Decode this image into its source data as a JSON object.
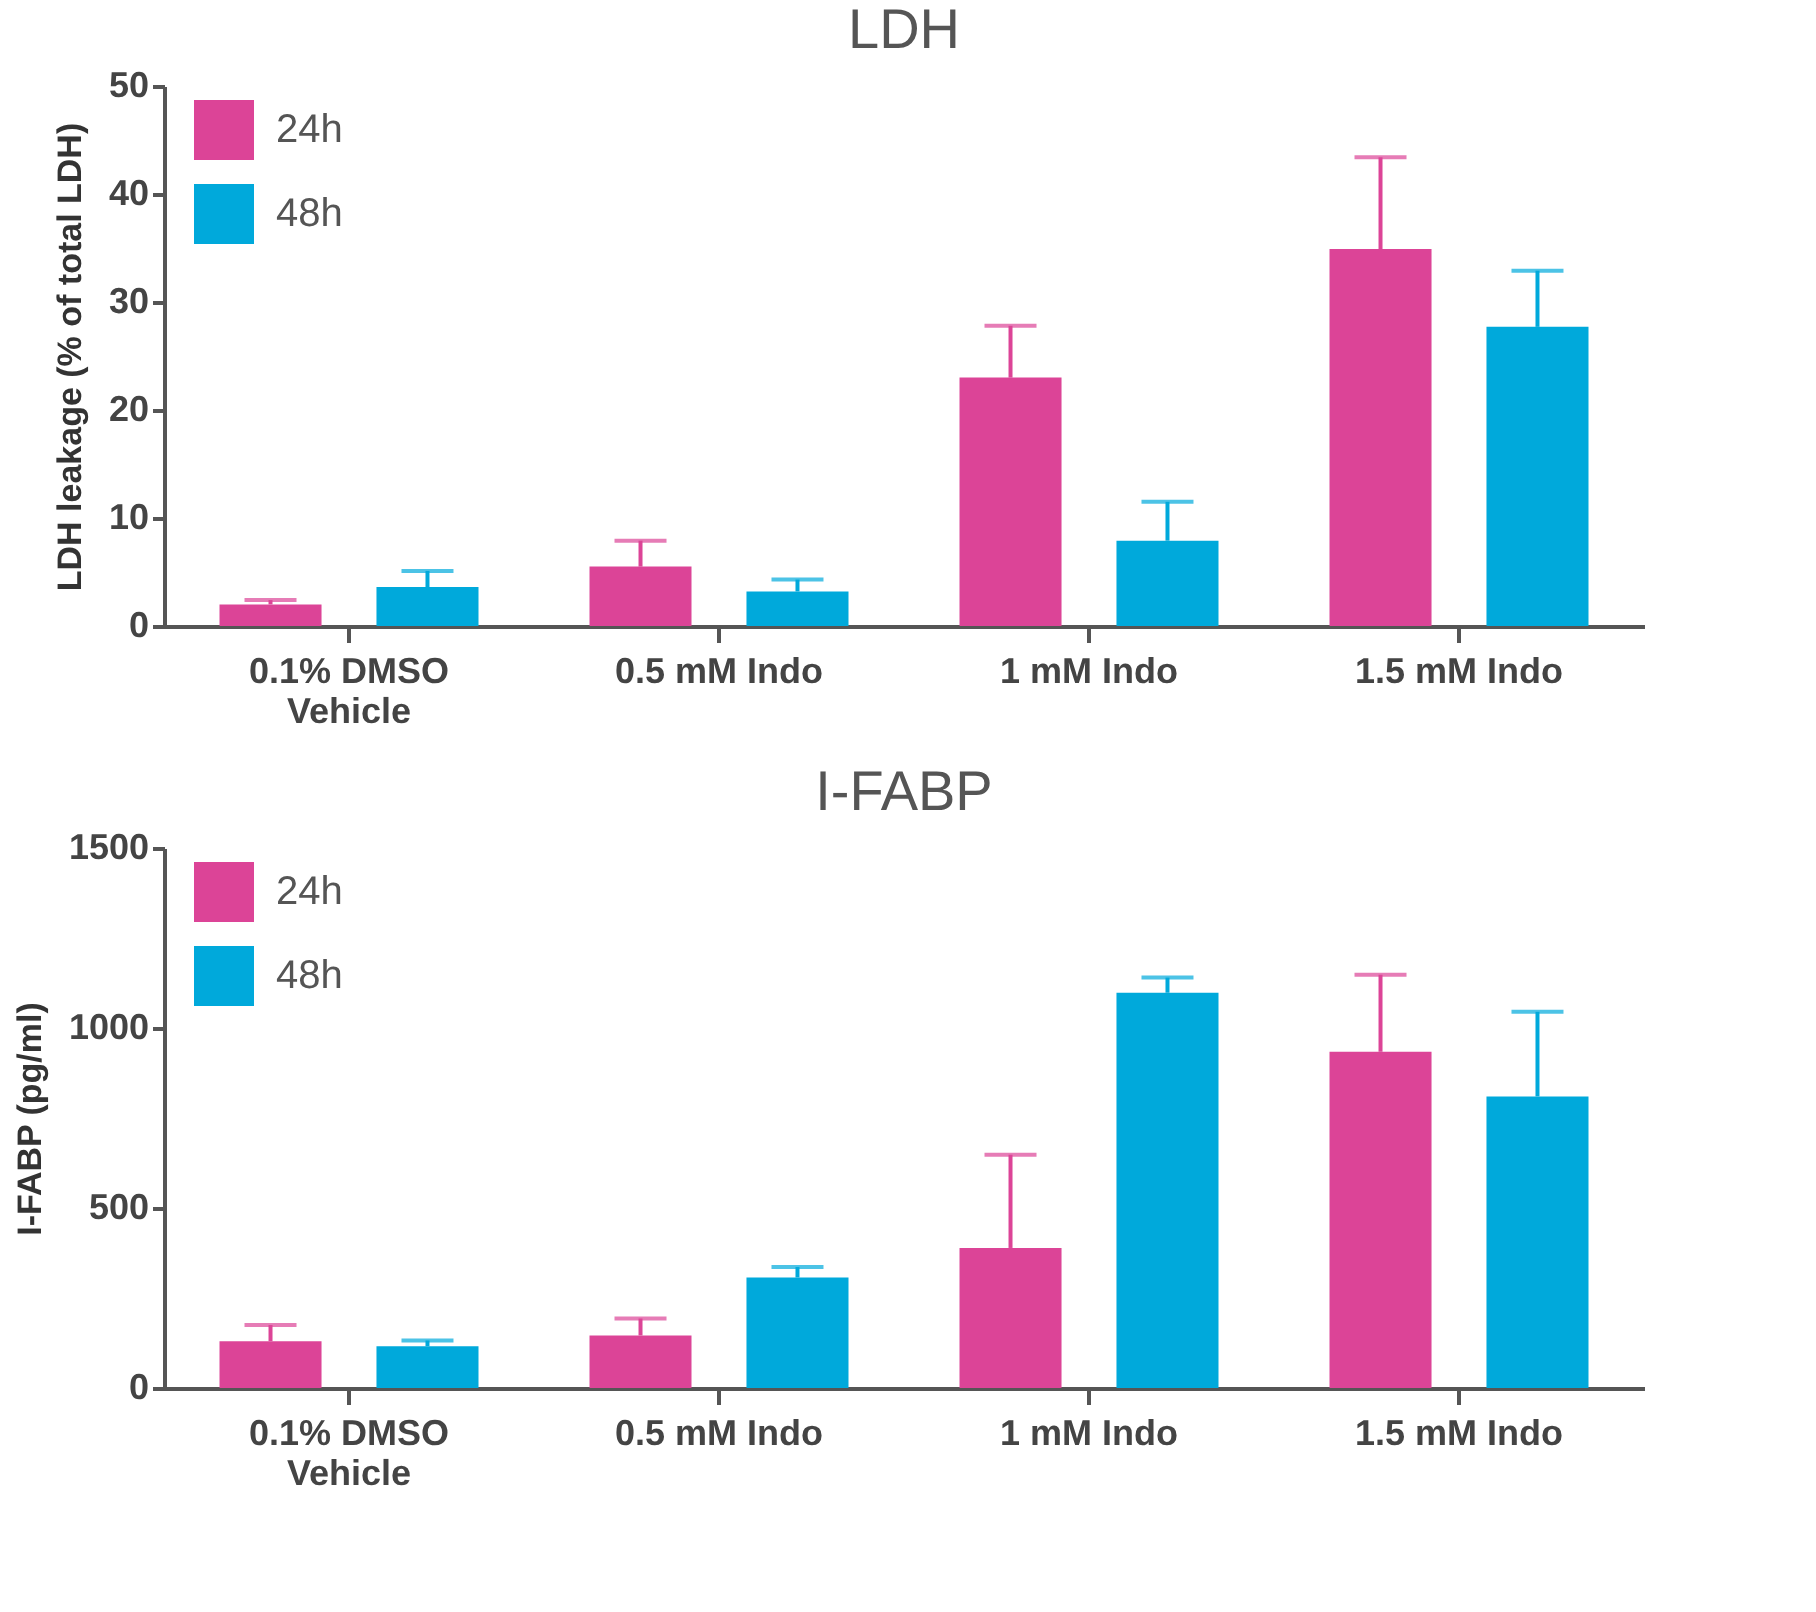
{
  "chart_data": [
    {
      "type": "bar",
      "title": "LDH",
      "ylabel": "LDH leakage (% of total LDH)",
      "categories": [
        "0.1% DMSO\nVehicle",
        "0.5 mM Indo",
        "1 mM Indo",
        "1.5 mM Indo"
      ],
      "series": [
        {
          "name": "24h",
          "color": "#dc4497",
          "values": [
            2.0,
            5.5,
            23.0,
            34.9
          ],
          "errors": [
            [
              2.0,
              2.4
            ],
            [
              5.5,
              7.9
            ],
            [
              23.0,
              27.8
            ],
            [
              34.9,
              43.4
            ]
          ]
        },
        {
          "name": "48h",
          "color": "#00a9db",
          "values": [
            3.6,
            3.2,
            7.9,
            27.7
          ],
          "errors": [
            [
              3.6,
              5.1
            ],
            [
              3.2,
              4.3
            ],
            [
              7.9,
              11.5
            ],
            [
              27.7,
              32.9
            ]
          ]
        }
      ],
      "ylim": [
        0,
        50
      ],
      "yticks": [
        0,
        10,
        20,
        30,
        40,
        50
      ],
      "legend": "top left",
      "grid": false
    },
    {
      "type": "bar",
      "title": "I-FABP",
      "ylabel": "I-FABP (pg/ml)",
      "categories": [
        "0.1% DMSO\nVehicle",
        "0.5 mM Indo",
        "1 mM Indo",
        "1.5 mM Indo"
      ],
      "series": [
        {
          "name": "24h",
          "color": "#dc4497",
          "values": [
            130,
            146,
            389,
            934
          ],
          "errors": [
            [
              130,
              175
            ],
            [
              146,
              193
            ],
            [
              389,
              648
            ],
            [
              934,
              1148
            ]
          ]
        },
        {
          "name": "48h",
          "color": "#00a9db",
          "values": [
            116,
            307,
            1098,
            810
          ],
          "errors": [
            [
              116,
              132
            ],
            [
              307,
              336
            ],
            [
              1098,
              1140
            ],
            [
              810,
              1045
            ]
          ]
        }
      ],
      "ylim": [
        0,
        1500
      ],
      "yticks": [
        0,
        500,
        1000,
        1500
      ],
      "legend": "top left",
      "grid": false
    }
  ]
}
